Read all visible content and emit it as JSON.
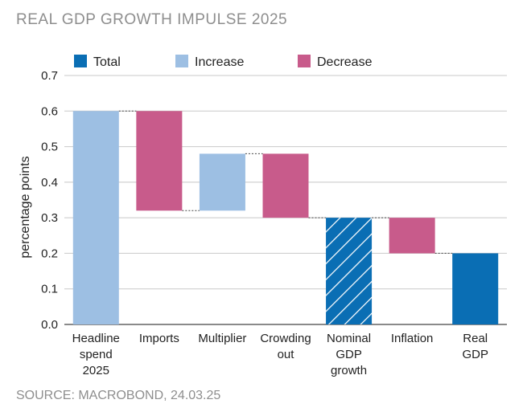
{
  "chart_data": {
    "type": "bar",
    "title": "REAL GDP GROWTH IMPULSE 2025",
    "source": "SOURCE: MACROBOND, 24.03.25",
    "ylabel": "percentage points",
    "ylim": [
      0,
      0.7
    ],
    "yticks": [
      "0.0",
      "0.1",
      "0.2",
      "0.3",
      "0.4",
      "0.5",
      "0.6",
      "0.7"
    ],
    "legend": [
      {
        "label": "Total",
        "color": "#0a6eb4"
      },
      {
        "label": "Increase",
        "color": "#9dbfe3"
      },
      {
        "label": "Decrease",
        "color": "#c85b8b"
      }
    ],
    "bars": [
      {
        "label": [
          "Headline",
          "spend",
          "2025"
        ],
        "kind": "increase",
        "start": 0.0,
        "end": 0.6
      },
      {
        "label": [
          "Imports"
        ],
        "kind": "decrease",
        "start": 0.6,
        "end": 0.32
      },
      {
        "label": [
          "Multiplier"
        ],
        "kind": "increase",
        "start": 0.32,
        "end": 0.48
      },
      {
        "label": [
          "Crowding",
          "out"
        ],
        "kind": "decrease",
        "start": 0.48,
        "end": 0.3
      },
      {
        "label": [
          "Nominal",
          "GDP",
          "growth"
        ],
        "kind": "total-hatched",
        "start": 0.0,
        "end": 0.3
      },
      {
        "label": [
          "Inflation"
        ],
        "kind": "decrease",
        "start": 0.3,
        "end": 0.2
      },
      {
        "label": [
          "Real",
          "GDP"
        ],
        "kind": "total",
        "start": 0.0,
        "end": 0.2
      }
    ]
  }
}
